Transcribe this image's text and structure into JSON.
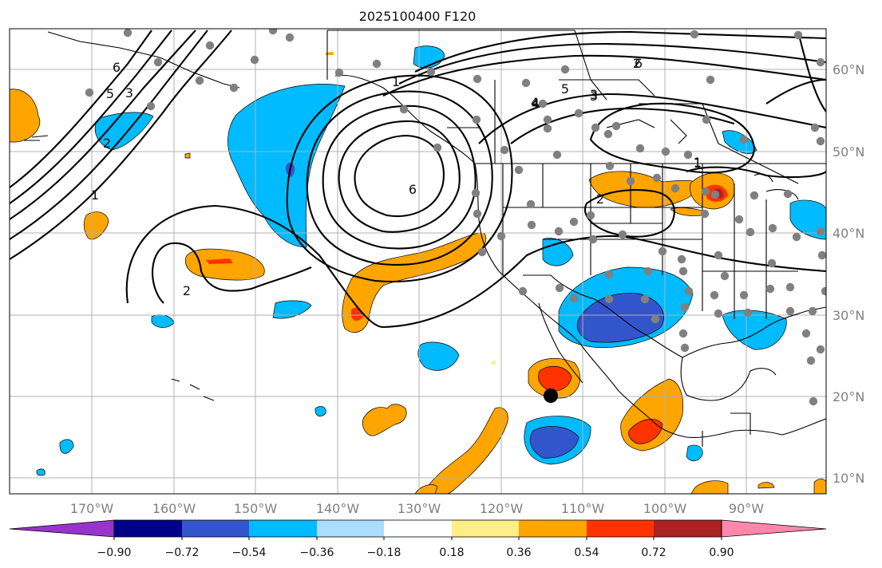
{
  "title": "2025100400 F120",
  "lon_labels": [
    "170°W",
    "160°W",
    "150°W",
    "140°W",
    "130°W",
    "120°W",
    "110°W",
    "100°W",
    "90°W"
  ],
  "lat_labels": [
    "60°N",
    "50°N",
    "40°N",
    "30°N",
    "20°N",
    "10°N"
  ],
  "colorbar": {
    "colors": [
      "#9933cc",
      "#000088",
      "#3355cc",
      "#00bbff",
      "#aaddff",
      "#ffffff",
      "#ffee88",
      "#ffa500",
      "#ff3300",
      "#aa2222",
      "#ff88aa"
    ],
    "tick_labels": [
      "−0.90",
      "−0.72",
      "−0.54",
      "−0.36",
      "−0.18",
      "0.18",
      "0.36",
      "0.54",
      "0.72",
      "0.90"
    ]
  },
  "contour_labels": [
    "6",
    "5",
    "3",
    "4",
    "6",
    "1",
    "2",
    "2",
    "2",
    "1",
    "1",
    "2",
    "3",
    "4",
    "5",
    "6",
    "4",
    "3",
    "1"
  ],
  "colors": {
    "station": "#808080",
    "marker": "#000000",
    "cold": "#00bbff",
    "warm": "#ffa500"
  },
  "stations_count": 70
}
